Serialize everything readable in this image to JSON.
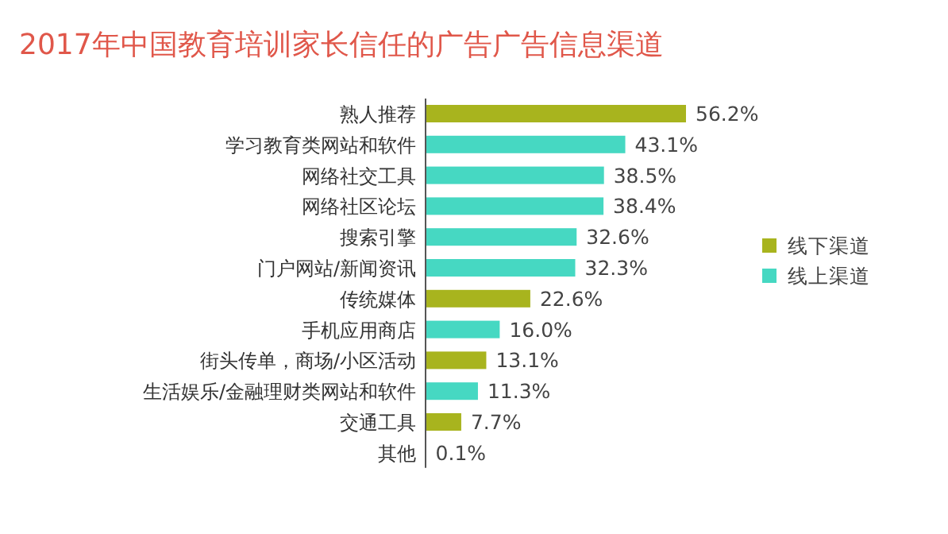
{
  "chart_data": {
    "type": "bar",
    "orientation": "horizontal",
    "stacked": true,
    "title": "2017年中国教育培训家长信任的广告广告信息渠道",
    "categories": [
      "熟人推荐",
      "学习教育类网站和软件",
      "网络社交工具",
      "网络社区论坛",
      "搜索引擎",
      "门户网站/新闻资讯",
      "传统媒体",
      "手机应用商店",
      "街头传单，商场/小区活动",
      "生活娱乐/金融理财类网站和软件",
      "交通工具",
      "其他"
    ],
    "series": [
      {
        "name": "线下渠道",
        "color": "#a8b41e",
        "values": [
          56.2,
          null,
          null,
          null,
          null,
          null,
          22.6,
          null,
          13.1,
          null,
          7.7,
          0.1
        ],
        "value_labels": [
          "56.2%",
          null,
          null,
          null,
          null,
          null,
          "22.6%",
          null,
          "13.1%",
          null,
          "7.7%",
          "0.1%"
        ]
      },
      {
        "name": "线上渠道",
        "color": "#46d8c2",
        "values": [
          null,
          43.1,
          38.5,
          38.4,
          32.6,
          32.3,
          null,
          16.0,
          null,
          11.3,
          null,
          null
        ],
        "value_labels": [
          null,
          "43.1%",
          "38.5%",
          "38.4%",
          "32.6%",
          "32.3%",
          null,
          "16.0%",
          null,
          "11.3%",
          null,
          null
        ]
      }
    ],
    "legend": "right"
  }
}
